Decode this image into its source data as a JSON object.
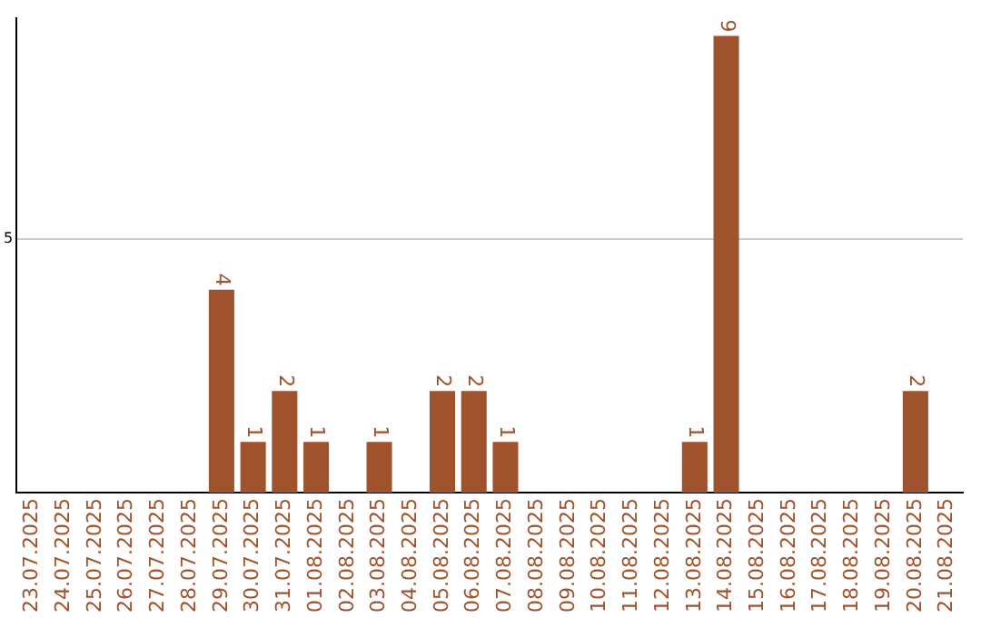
{
  "chart_data": {
    "type": "bar",
    "categories": [
      "23.07.2025",
      "24.07.2025",
      "25.07.2025",
      "26.07.2025",
      "27.07.2025",
      "28.07.2025",
      "29.07.2025",
      "30.07.2025",
      "31.07.2025",
      "01.08.2025",
      "02.08.2025",
      "03.08.2025",
      "04.08.2025",
      "05.08.2025",
      "06.08.2025",
      "07.08.2025",
      "08.08.2025",
      "09.08.2025",
      "10.08.2025",
      "11.08.2025",
      "12.08.2025",
      "13.08.2025",
      "14.08.2025",
      "15.08.2025",
      "16.08.2025",
      "17.08.2025",
      "18.08.2025",
      "19.08.2025",
      "20.08.2025",
      "21.08.2025"
    ],
    "values": [
      0,
      0,
      0,
      0,
      0,
      0,
      4,
      1,
      2,
      1,
      0,
      1,
      0,
      2,
      2,
      1,
      0,
      0,
      0,
      0,
      0,
      1,
      9,
      0,
      0,
      0,
      0,
      0,
      2,
      0
    ],
    "value_labels": [
      null,
      null,
      null,
      null,
      null,
      null,
      "4",
      "1",
      "2",
      "1",
      null,
      "1",
      null,
      "2",
      "2",
      "1",
      null,
      null,
      null,
      null,
      null,
      "1",
      "9",
      null,
      null,
      null,
      null,
      null,
      "2",
      null
    ],
    "color": "#a0522d",
    "ylim": [
      0,
      9.35
    ],
    "yticks": [
      5
    ],
    "grid": "y"
  }
}
